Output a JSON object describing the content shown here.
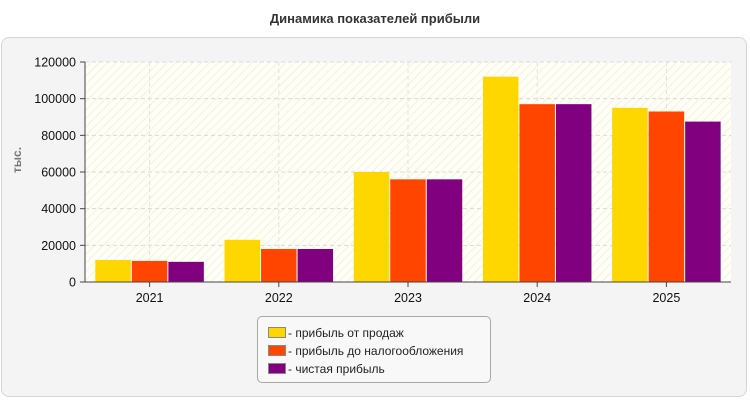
{
  "chart_data": {
    "type": "bar",
    "title": "Динамика показателей прибыли",
    "ylabel": "тыс.",
    "xlabel": "",
    "categories": [
      "2021",
      "2022",
      "2023",
      "2024",
      "2025"
    ],
    "ylim": [
      0,
      120000
    ],
    "yticks": [
      "0",
      "20000",
      "40000",
      "60000",
      "80000",
      "100000",
      "120000"
    ],
    "ytick_values": [
      0,
      20000,
      40000,
      60000,
      80000,
      100000,
      120000
    ],
    "grid": true,
    "legend_position": "bottom-center",
    "series": [
      {
        "name": "- прибыль от продаж",
        "color": "#FFD700",
        "values": [
          12000,
          23000,
          60000,
          112000,
          95000
        ]
      },
      {
        "name": "- прибыль до налогообложения",
        "color": "#FF4500",
        "values": [
          11500,
          18000,
          56000,
          97000,
          93000
        ]
      },
      {
        "name": "- чистая прибыль",
        "color": "#800080",
        "values": [
          11000,
          18000,
          56000,
          97000,
          87500
        ]
      }
    ]
  }
}
